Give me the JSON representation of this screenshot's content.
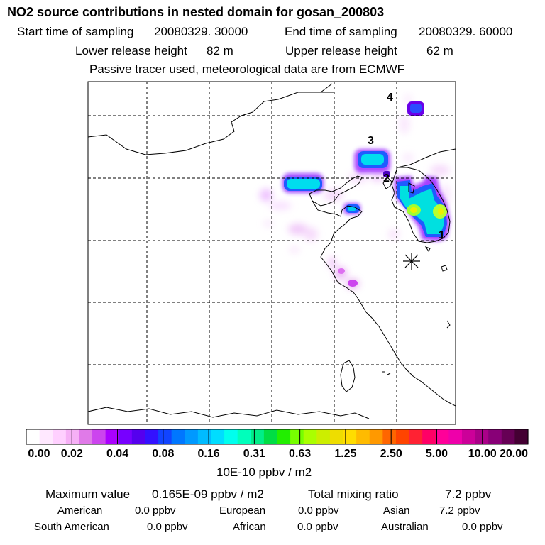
{
  "header": {
    "title": "NO2 source contributions in nested domain for gosan_200803",
    "start_label": "Start time of sampling",
    "start_value": "20080329. 30000",
    "end_label": "End time of sampling",
    "end_value": "20080329. 60000",
    "lower_label": "Lower release height",
    "lower_value": "82 m",
    "upper_label": "Upper release height",
    "upper_value": "62 m",
    "note": "Passive tracer used, meteorological data are from ECMWF"
  },
  "map": {
    "region_labels": [
      "1",
      "2",
      "3",
      "4"
    ],
    "receptor_marker": "asterisk-marker",
    "grid": "dashed"
  },
  "colorbar": {
    "ticks": [
      "0.00",
      "0.02",
      "0.04",
      "0.08",
      "0.16",
      "0.31",
      "0.63",
      "1.25",
      "2.50",
      "5.00",
      "10.00",
      "20.00"
    ],
    "unit": "10E-10 ppbv / m2",
    "colors": [
      "#ffffff",
      "#ffe8ff",
      "#ffd0ff",
      "#f6b0f6",
      "#e07ae8",
      "#cc44ee",
      "#aa00ff",
      "#7700ff",
      "#5500ee",
      "#3311ff",
      "#1144ff",
      "#0077ff",
      "#0099ff",
      "#00bbff",
      "#00ddff",
      "#00ffee",
      "#00ffbb",
      "#00ee88",
      "#00dd44",
      "#22ee00",
      "#77ff00",
      "#aaff00",
      "#ccee00",
      "#eedd00",
      "#ffdd00",
      "#ffbb00",
      "#ff9900",
      "#ff6600",
      "#ff4400",
      "#ff2233",
      "#ff0066",
      "#ff0099",
      "#ee00aa",
      "#cc0099",
      "#aa0088",
      "#880077",
      "#660055",
      "#440033"
    ]
  },
  "footer": {
    "max_label": "Maximum value",
    "max_value": "0.165E-09 ppbv / m2",
    "total_label": "Total mixing ratio",
    "total_value": "7.2 ppbv",
    "american_label": "American",
    "american_value": "0.0 ppbv",
    "european_label": "European",
    "european_value": "0.0 ppbv",
    "asian_label": "Asian",
    "asian_value": "7.2 ppbv",
    "south_american_label": "South American",
    "south_american_value": "0.0 ppbv",
    "african_label": "African",
    "african_value": "0.0 ppbv",
    "australian_label": "Australian",
    "australian_value": "0.0 ppbv"
  }
}
